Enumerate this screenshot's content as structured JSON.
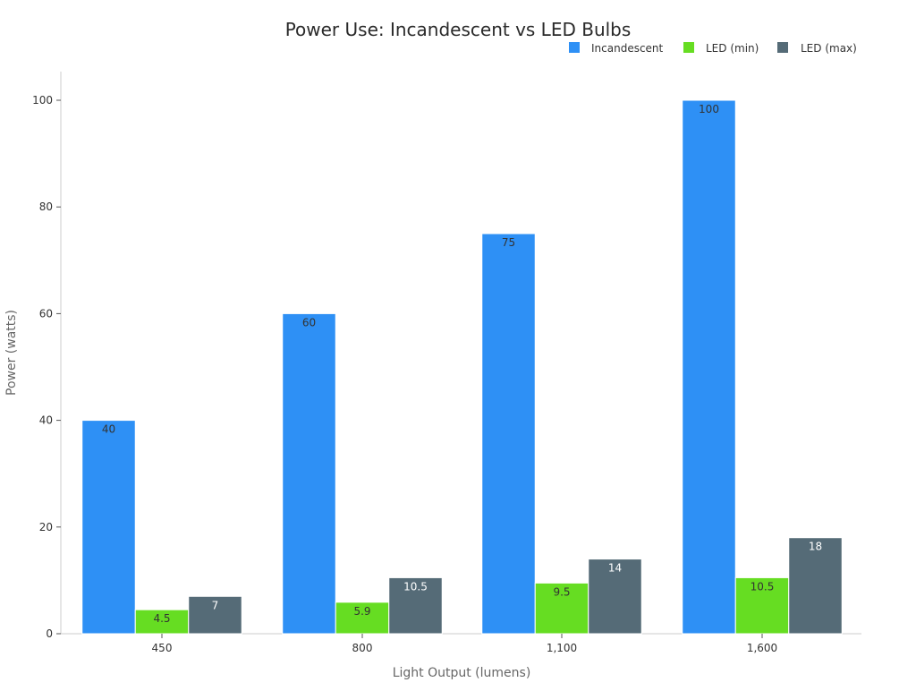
{
  "chart_data": {
    "type": "bar",
    "title": "Power Use: Incandescent vs LED Bulbs",
    "xlabel": "Light Output (lumens)",
    "ylabel": "Power (watts)",
    "categories": [
      "450",
      "800",
      "1,100",
      "1,600"
    ],
    "series": [
      {
        "name": "Incandescent",
        "values": [
          40,
          60,
          75,
          100
        ],
        "color": "#2e90f5"
      },
      {
        "name": "LED (min)",
        "values": [
          4.5,
          5.9,
          9.5,
          10.5
        ],
        "color": "#66dd22"
      },
      {
        "name": "LED (max)",
        "values": [
          7,
          10.5,
          14,
          18
        ],
        "color": "#556b77"
      }
    ],
    "ylim": [
      0,
      105
    ],
    "yticks": [
      0,
      20,
      40,
      60,
      80,
      100
    ],
    "grid": false,
    "legend_position": "top-right"
  }
}
